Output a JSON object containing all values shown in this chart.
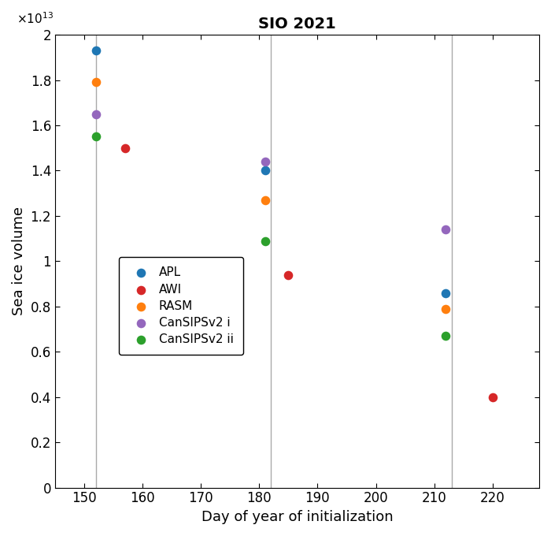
{
  "title": "SIO 2021",
  "xlabel": "Day of year of initialization",
  "ylabel": "Sea ice volume",
  "series": {
    "APL": {
      "color": "#1f77b4",
      "x": [
        152,
        181,
        212
      ],
      "y": [
        19300000000000.0,
        14000000000000.0,
        8600000000000.0
      ]
    },
    "AWI": {
      "color": "#d62728",
      "x": [
        157,
        185,
        220
      ],
      "y": [
        15000000000000.0,
        9400000000000.0,
        4000000000000.0
      ]
    },
    "RASM": {
      "color": "#ff7f0e",
      "x": [
        152,
        181,
        212
      ],
      "y": [
        17900000000000.0,
        12700000000000.0,
        7900000000000.0
      ]
    },
    "CanSIPSv2 i": {
      "color": "#9467bd",
      "x": [
        152,
        181,
        212
      ],
      "y": [
        16500000000000.0,
        14400000000000.0,
        11400000000000.0
      ]
    },
    "CanSIPSv2 ii": {
      "color": "#2ca02c",
      "x": [
        152,
        181,
        212
      ],
      "y": [
        15500000000000.0,
        10900000000000.0,
        6700000000000.0
      ]
    }
  },
  "vlines": [
    152,
    182,
    213
  ],
  "xlim": [
    145,
    228
  ],
  "ylim": [
    0,
    20000000000000.0
  ],
  "ytick_vals": [
    0,
    2000000000000.0,
    4000000000000.0,
    6000000000000.0,
    8000000000000.0,
    10000000000000.0,
    12000000000000.0,
    14000000000000.0,
    16000000000000.0,
    18000000000000.0,
    20000000000000.0
  ],
  "ytick_labels": [
    "0",
    "0.2",
    "0.4",
    "0.6",
    "0.8",
    "1",
    "1.2",
    "1.4",
    "1.6",
    "1.8",
    "2"
  ],
  "xticks": [
    150,
    160,
    170,
    180,
    190,
    200,
    210,
    220
  ],
  "marker_size": 70,
  "vline_color": "#aaaaaa",
  "vline_lw": 1.0,
  "background_color": "#ffffff",
  "legend_labels": [
    "APL",
    "AWI",
    "RASM",
    "CanSIPSv2 i",
    "CanSIPSv2 ii"
  ]
}
